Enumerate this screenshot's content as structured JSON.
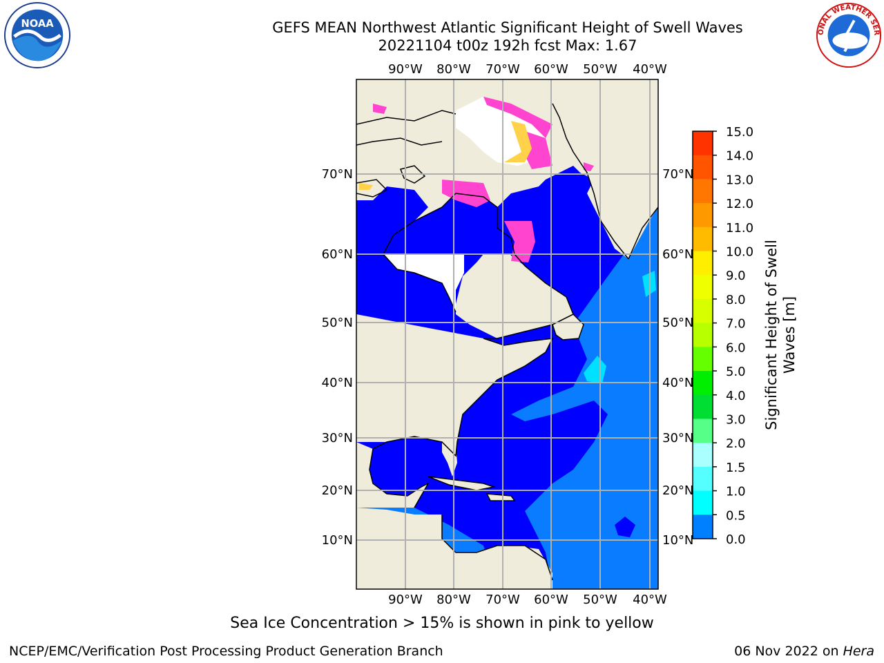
{
  "header": {
    "title": "GEFS MEAN Northwest Atlantic Significant Height of Swell Waves",
    "subtitle": "20221104 t00z 192h fcst   Max: 1.67"
  },
  "logos": {
    "left": "noaa-logo",
    "left_text": "NOAA",
    "right": "nws-logo",
    "right_text": "NATIONAL WEATHER SERVICE"
  },
  "map": {
    "lon_labels": [
      "90°W",
      "80°W",
      "70°W",
      "60°W",
      "50°W",
      "40°W"
    ],
    "lat_labels": [
      "70°N",
      "60°N",
      "50°N",
      "40°N",
      "30°N",
      "20°N",
      "10°N"
    ],
    "colors": {
      "land": "#efecdc",
      "ocean_low": "#0000ff",
      "ocean_mid": "#0a7cff",
      "ocean_high": "#00e0ff",
      "ice_pink": "#ff44d0",
      "ice_yellow": "#ffd24a",
      "grid": "#b0b0b0"
    }
  },
  "colorbar": {
    "label": "Significant Height of Swell Waves [m]",
    "label_line1": "Significant Height of Swell",
    "label_line2": "Waves [m]",
    "ticks": [
      "15.0",
      "14.0",
      "13.0",
      "12.0",
      "11.0",
      "10.0",
      "9.0",
      "8.0",
      "7.0",
      "6.0",
      "5.0",
      "4.0",
      "3.0",
      "2.0",
      "1.5",
      "1.0",
      "0.5",
      "0.0"
    ],
    "colors": [
      "#ff0000",
      "#ff3300",
      "#ff5500",
      "#ff7700",
      "#ff9900",
      "#ffbb00",
      "#ffee00",
      "#f0ff00",
      "#d8ff00",
      "#b8ff00",
      "#66ff00",
      "#00ee00",
      "#00dd33",
      "#55ff88",
      "#aaffff",
      "#55ffff",
      "#00ffff",
      "#0080ff",
      "#0000ff"
    ]
  },
  "footer": {
    "ice_note": "Sea Ice Concentration > 15% is shown in pink to yellow",
    "credit": "NCEP/EMC/Verification Post Processing Product Generation Branch",
    "date": "06 Nov 2022 on",
    "machine": "Hera"
  }
}
